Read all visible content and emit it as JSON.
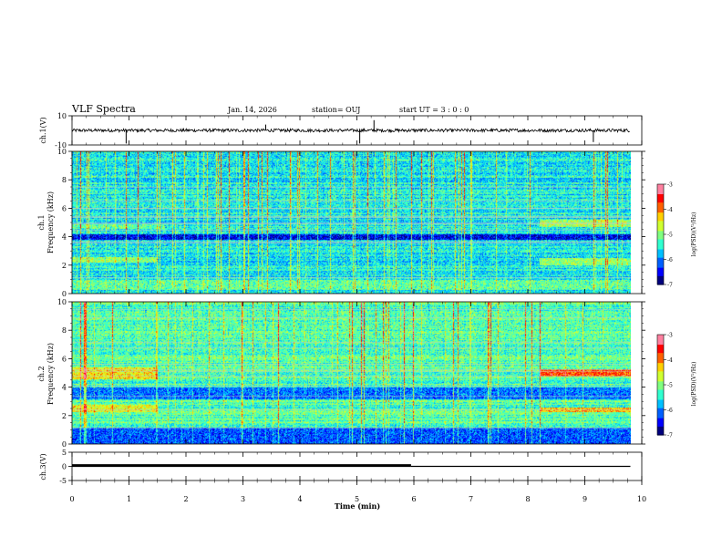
{
  "header": {
    "title": "VLF Spectra",
    "date": "Jan. 14, 2026",
    "station": "station= OUJ",
    "start_ut": "start  UT =  3 : 0  : 0"
  },
  "colors": {
    "colormap": [
      "#00007f",
      "#0000ff",
      "#0060ff",
      "#00c0ff",
      "#30ffd0",
      "#80ff80",
      "#d0ff30",
      "#ffd000",
      "#ff6000",
      "#ff0000",
      "#ff80a0",
      "#ffffff"
    ],
    "trace": "#000000"
  },
  "chart_data": [
    {
      "type": "line",
      "name": "ch1-waveform",
      "ylabel": "ch.1(V)",
      "ylim": [
        -10,
        10
      ],
      "yticks": [
        "10",
        "-10"
      ],
      "baseline_value": 0,
      "spikes": [
        {
          "t": 0.95,
          "v": -9
        },
        {
          "t": 3.4,
          "v": 4
        },
        {
          "t": 5.05,
          "v": -9
        },
        {
          "t": 5.3,
          "v": 7
        },
        {
          "t": 9.15,
          "v": -8
        }
      ]
    },
    {
      "type": "heatmap",
      "name": "ch1-spectrogram",
      "ylabel": "ch.1\nFrequency (kHz)",
      "ylabel_lines": [
        "ch.1",
        "Frequency (kHz)"
      ],
      "ylim": [
        0,
        10
      ],
      "yticks": [
        "0",
        "2",
        "4",
        "6",
        "8",
        "10"
      ],
      "xlim": [
        0,
        9.8
      ],
      "colorbar": {
        "label": "log(PSD)(V²/Hz)",
        "ticks": [
          "-3",
          "-4",
          "-5",
          "-6",
          "-7"
        ],
        "range": [
          -7,
          -3
        ]
      },
      "background_level": -5.6,
      "bands": [
        {
          "f0": 0.3,
          "f1": 1.0,
          "level": -5.2
        },
        {
          "f0": 2.2,
          "f1": 2.6,
          "t0": 0,
          "t1": 1.5,
          "level": -5.0
        },
        {
          "f0": 3.8,
          "f1": 4.2,
          "level": -6.6
        },
        {
          "f0": 4.6,
          "f1": 4.9,
          "t0": 0,
          "t1": 1.6,
          "level": -5.2
        },
        {
          "f0": 4.7,
          "f1": 5.2,
          "t0": 8.2,
          "t1": 9.8,
          "level": -4.9
        },
        {
          "f0": 2.0,
          "f1": 2.5,
          "t0": 8.2,
          "t1": 9.8,
          "level": -5.0
        }
      ]
    },
    {
      "type": "heatmap",
      "name": "ch2-spectrogram",
      "ylabel": "ch.2\nFrequency (kHz)",
      "ylabel_lines": [
        "ch.2",
        "Frequency (kHz)"
      ],
      "ylim": [
        0,
        10
      ],
      "yticks": [
        "0",
        "2",
        "4",
        "6",
        "8",
        "10"
      ],
      "xlim": [
        0,
        9.8
      ],
      "colorbar": {
        "label": "log(PSD)(V²/Hz)",
        "ticks": [
          "-3",
          "-4",
          "-5",
          "-6",
          "-7"
        ],
        "range": [
          -7,
          -3
        ]
      },
      "background_level": -5.3,
      "bands": [
        {
          "f0": 4.6,
          "f1": 5.4,
          "t0": 0,
          "t1": 1.5,
          "level": -4.5
        },
        {
          "f0": 4.8,
          "f1": 5.3,
          "t0": 8.2,
          "t1": 9.8,
          "level": -3.9
        },
        {
          "f0": 2.3,
          "f1": 2.8,
          "t0": 0,
          "t1": 1.5,
          "level": -4.6
        },
        {
          "f0": 2.3,
          "f1": 2.6,
          "t0": 8.2,
          "t1": 9.8,
          "level": -4.3
        },
        {
          "f0": 0.0,
          "f1": 1.2,
          "level": -6.2
        },
        {
          "f0": 3.2,
          "f1": 4.0,
          "level": -6.1
        }
      ]
    },
    {
      "type": "line",
      "name": "ch3-waveform",
      "ylabel": "ch.3(V)",
      "ylim": [
        -5,
        5
      ],
      "yticks": [
        "5",
        "0",
        "-5"
      ],
      "xlabel": "Time (min)",
      "xlim": [
        0,
        10
      ],
      "xticks": [
        "0",
        "1",
        "2",
        "3",
        "4",
        "5",
        "6",
        "7",
        "8",
        "9",
        "10"
      ],
      "segments": [
        {
          "t0": 0,
          "t1": 5.95,
          "v": 0.3,
          "width": "thick"
        },
        {
          "t0": 5.95,
          "t1": 9.8,
          "v": 0.0,
          "width": "thin"
        }
      ]
    }
  ]
}
